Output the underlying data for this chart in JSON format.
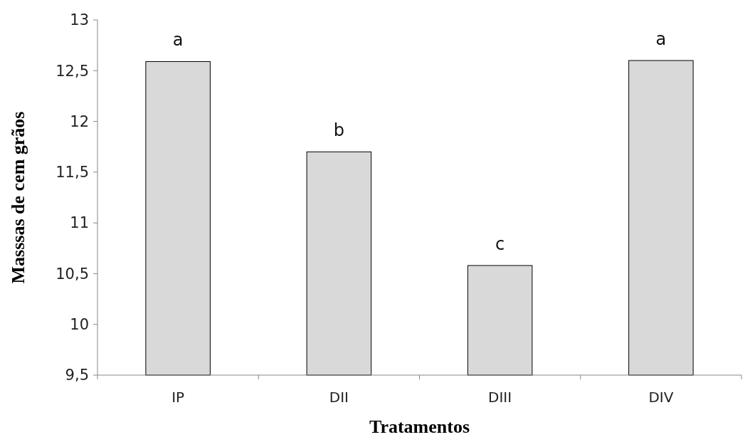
{
  "chart_data": {
    "type": "bar",
    "xlabel": "Tratamentos",
    "ylabel": "Masssas de cem grãos",
    "categories": [
      "IP",
      "DII",
      "DIII",
      "DIV"
    ],
    "values": [
      12.59,
      11.7,
      10.58,
      12.6
    ],
    "color": "#d9d9d9",
    "ylim": [
      9.5,
      13
    ],
    "yticks": [
      {
        "value": 9.5,
        "label": "9,5"
      },
      {
        "value": 10,
        "label": "10"
      },
      {
        "value": 10.5,
        "label": "10,5"
      },
      {
        "value": 11,
        "label": "11"
      },
      {
        "value": 11.5,
        "label": "11,5"
      },
      {
        "value": 12,
        "label": "12"
      },
      {
        "value": 12.5,
        "label": "12,5"
      },
      {
        "value": 13,
        "label": "13"
      }
    ],
    "grid": false,
    "annotations": [
      {
        "text": "a",
        "x": "IP",
        "y": 12.59
      },
      {
        "text": "b",
        "x": "DII",
        "y": 11.7
      },
      {
        "text": "c",
        "x": "DIII",
        "y": 10.58
      },
      {
        "text": "a",
        "x": "DIV",
        "y": 12.6
      }
    ]
  }
}
